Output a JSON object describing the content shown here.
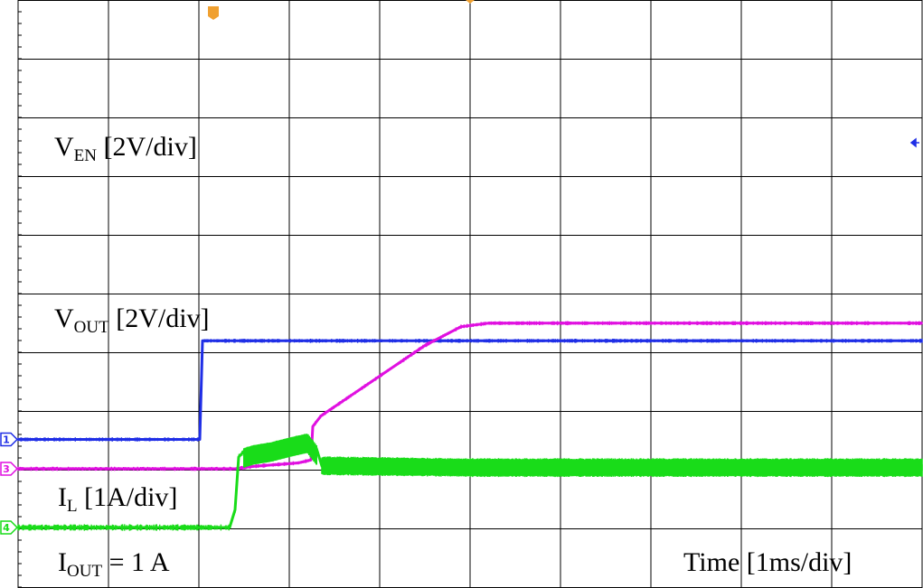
{
  "chart_data": {
    "type": "line",
    "title": "",
    "xlabel": "Time [1ms/div]",
    "x_unit": "ms",
    "xlim": [
      0,
      10
    ],
    "grid": true,
    "divisions": {
      "x": 10,
      "y": 10
    },
    "series": [
      {
        "id": "en",
        "channel": "1",
        "label_main": "V",
        "label_sub": "EN",
        "label_tail": " [2V/div]",
        "scale": "2V/div",
        "color": "#1f2ee6",
        "ground_div": 1.5,
        "points": [
          [
            0,
            0
          ],
          [
            1.98,
            0
          ],
          [
            2.01,
            0
          ],
          [
            2.04,
            1.68
          ],
          [
            2.1,
            1.68
          ],
          [
            10,
            1.68
          ]
        ],
        "noise_div": 0.05
      },
      {
        "id": "out",
        "channel": "3",
        "label_main": "V",
        "label_sub": "OUT",
        "label_tail": " [2V/div]",
        "scale": "2V/div",
        "color": "#e010e0",
        "ground_div": 1.0,
        "points": [
          [
            0,
            0
          ],
          [
            2.4,
            0
          ],
          [
            2.6,
            0.04
          ],
          [
            3.1,
            0.1
          ],
          [
            3.24,
            0.15
          ],
          [
            3.26,
            0.72
          ],
          [
            3.35,
            0.9
          ],
          [
            4.5,
            2.1
          ],
          [
            4.9,
            2.42
          ],
          [
            5.2,
            2.48
          ],
          [
            10,
            2.48
          ]
        ],
        "noise_div": 0.05
      },
      {
        "id": "il",
        "channel": "4",
        "label_main": "I",
        "label_sub": "L",
        "label_tail": " [1A/div]",
        "scale": "1A/div",
        "color": "#19dc19",
        "ground_div": 0.0,
        "points": [
          [
            0,
            0
          ],
          [
            2.34,
            0
          ],
          [
            2.4,
            0.3
          ],
          [
            2.44,
            1.2
          ],
          [
            2.5,
            1.3
          ],
          [
            2.6,
            1.35
          ],
          [
            2.8,
            1.4
          ],
          [
            3.0,
            1.48
          ],
          [
            3.2,
            1.55
          ],
          [
            3.3,
            1.35
          ],
          [
            3.36,
            1.05
          ],
          [
            3.45,
            1.05
          ],
          [
            5.0,
            1.02
          ],
          [
            10,
            1.02
          ]
        ],
        "noise_div": 0.08
      }
    ],
    "annotations": [
      {
        "main": "I",
        "sub": "OUT",
        "tail": " = 1 A"
      }
    ],
    "trigger_marker_color": "#f0a030",
    "ref_marker_color": "#1f2ee6"
  }
}
